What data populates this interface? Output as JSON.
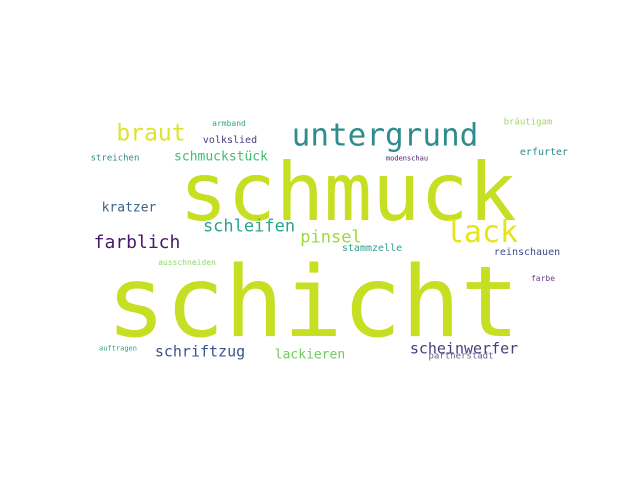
{
  "words": [
    {
      "text": "schicht",
      "color": "#c6df22"
    },
    {
      "text": "schmuck",
      "color": "#c6df22"
    },
    {
      "text": "untergrund",
      "color": "#2e8c8c"
    },
    {
      "text": "lack",
      "color": "#e6e41a"
    },
    {
      "text": "braut",
      "color": "#dfe32b"
    },
    {
      "text": "farblich",
      "color": "#48176a"
    },
    {
      "text": "schleifen",
      "color": "#2aa48a"
    },
    {
      "text": "pinsel",
      "color": "#9dd93a"
    },
    {
      "text": "schriftzug",
      "color": "#3a548c"
    },
    {
      "text": "scheinwerfer",
      "color": "#463d81"
    },
    {
      "text": "lackieren",
      "color": "#6bcd5a"
    },
    {
      "text": "kratzer",
      "color": "#3a628b"
    },
    {
      "text": "schmuckstück",
      "color": "#3fbc73"
    },
    {
      "text": "stammzelle",
      "color": "#33a08b"
    },
    {
      "text": "volkslied",
      "color": "#40407f"
    },
    {
      "text": "reinschauen",
      "color": "#3e4a89"
    },
    {
      "text": "partnerstadt",
      "color": "#6d5b8c"
    },
    {
      "text": "erfurter",
      "color": "#2c8b8a"
    },
    {
      "text": "streichen",
      "color": "#2f8b8c"
    },
    {
      "text": "bräutigam",
      "color": "#9fd869"
    },
    {
      "text": "armband",
      "color": "#36a389"
    },
    {
      "text": "modenschau",
      "color": "#481b6c"
    },
    {
      "text": "ausschneiden",
      "color": "#8ed76b"
    },
    {
      "text": "farbe",
      "color": "#6a3f8a"
    },
    {
      "text": "auftragen",
      "color": "#2ea18a"
    }
  ]
}
